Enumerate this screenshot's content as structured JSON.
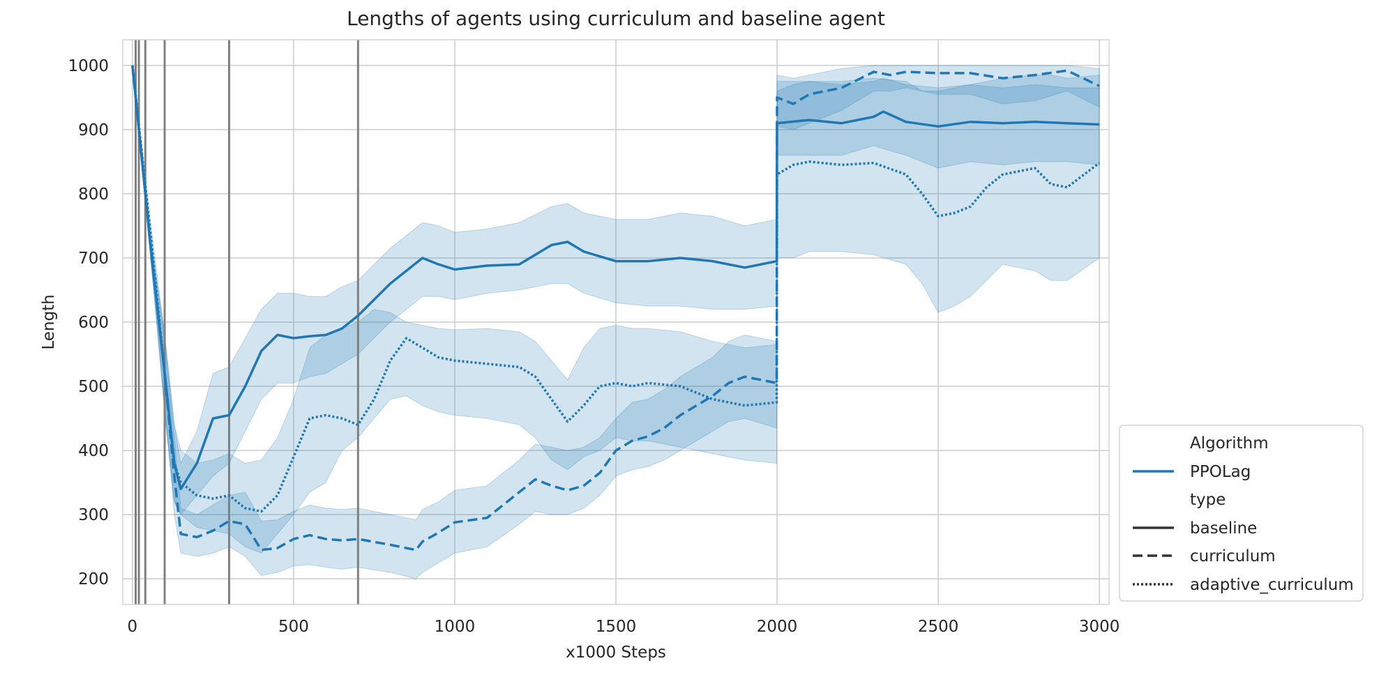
{
  "chart_data": {
    "type": "line",
    "title": "Lengths of agents using curriculum and baseline agent",
    "xlabel": "x1000 Steps",
    "ylabel": "Length",
    "xlim": [
      -30,
      3030
    ],
    "ylim": [
      160,
      1040
    ],
    "xticks": [
      0,
      500,
      1000,
      1500,
      2000,
      2500,
      3000
    ],
    "yticks": [
      200,
      300,
      400,
      500,
      600,
      700,
      800,
      900,
      1000
    ],
    "grid": true,
    "color": "#1f77b4",
    "band_opacity": 0.2,
    "vlines": {
      "x": [
        10,
        20,
        40,
        100,
        300,
        700
      ],
      "color": "#808080"
    },
    "legend": {
      "placement": "outside-lower-right",
      "items": [
        {
          "kind": "header",
          "label": "Algorithm"
        },
        {
          "kind": "line",
          "label": "PPOLag",
          "dash": "solid",
          "color": "#1f77b4"
        },
        {
          "kind": "header",
          "label": "type"
        },
        {
          "kind": "line",
          "label": "baseline",
          "dash": "solid",
          "color": "#333333"
        },
        {
          "kind": "line",
          "label": "curriculum",
          "dash": "dashed",
          "color": "#333333"
        },
        {
          "kind": "line",
          "label": "adaptive_curriculum",
          "dash": "dotted",
          "color": "#333333"
        }
      ]
    },
    "series": [
      {
        "name": "baseline",
        "dash": "solid",
        "x": [
          0,
          60,
          100,
          130,
          150,
          200,
          250,
          300,
          350,
          400,
          450,
          500,
          550,
          600,
          650,
          700,
          800,
          900,
          950,
          1000,
          1100,
          1200,
          1300,
          1350,
          1400,
          1500,
          1600,
          1700,
          1800,
          1900,
          1999,
          2000,
          2100,
          2200,
          2300,
          2330,
          2400,
          2500,
          2600,
          2700,
          2800,
          2900,
          3000
        ],
        "y": [
          1000,
          700,
          520,
          380,
          340,
          380,
          450,
          455,
          500,
          555,
          580,
          575,
          578,
          580,
          590,
          610,
          660,
          700,
          690,
          682,
          688,
          690,
          720,
          725,
          710,
          695,
          695,
          700,
          695,
          685,
          695,
          910,
          915,
          910,
          920,
          928,
          912,
          905,
          912,
          910,
          912,
          910,
          908
        ],
        "lower": [
          1000,
          680,
          460,
          320,
          300,
          330,
          360,
          380,
          430,
          480,
          505,
          505,
          515,
          520,
          535,
          550,
          600,
          640,
          640,
          635,
          645,
          650,
          660,
          660,
          645,
          630,
          625,
          625,
          620,
          620,
          625,
          860,
          860,
          860,
          875,
          870,
          860,
          840,
          850,
          845,
          850,
          850,
          845
        ],
        "upper": [
          1000,
          720,
          580,
          440,
          380,
          430,
          520,
          530,
          575,
          620,
          645,
          645,
          640,
          640,
          655,
          665,
          715,
          755,
          750,
          740,
          745,
          755,
          780,
          785,
          770,
          760,
          760,
          770,
          765,
          750,
          760,
          975,
          975,
          970,
          975,
          980,
          970,
          965,
          970,
          965,
          970,
          965,
          965
        ]
      },
      {
        "name": "curriculum",
        "dash": "dashed",
        "x": [
          0,
          60,
          100,
          130,
          150,
          200,
          250,
          300,
          350,
          400,
          450,
          500,
          550,
          600,
          650,
          700,
          800,
          880,
          900,
          950,
          1000,
          1100,
          1200,
          1250,
          1300,
          1350,
          1400,
          1450,
          1500,
          1550,
          1600,
          1650,
          1700,
          1800,
          1850,
          1900,
          1999,
          2000,
          2050,
          2100,
          2200,
          2300,
          2350,
          2400,
          2500,
          2600,
          2700,
          2800,
          2900,
          3000
        ],
        "y": [
          1000,
          700,
          520,
          360,
          270,
          265,
          275,
          290,
          285,
          245,
          248,
          262,
          268,
          262,
          260,
          262,
          253,
          245,
          258,
          272,
          288,
          295,
          335,
          355,
          345,
          338,
          345,
          365,
          400,
          415,
          422,
          435,
          455,
          485,
          505,
          515,
          505,
          950,
          940,
          955,
          965,
          990,
          985,
          990,
          988,
          988,
          980,
          985,
          992,
          968
        ],
        "lower": [
          1000,
          680,
          470,
          300,
          240,
          235,
          240,
          250,
          235,
          205,
          210,
          220,
          222,
          218,
          215,
          218,
          210,
          200,
          210,
          225,
          240,
          250,
          285,
          305,
          300,
          300,
          310,
          330,
          360,
          370,
          375,
          385,
          400,
          430,
          445,
          450,
          435,
          905,
          900,
          910,
          930,
          960,
          960,
          965,
          955,
          955,
          940,
          945,
          960,
          935
        ],
        "upper": [
          1000,
          720,
          570,
          420,
          310,
          300,
          315,
          330,
          335,
          290,
          292,
          305,
          315,
          310,
          308,
          310,
          300,
          292,
          308,
          320,
          338,
          345,
          385,
          410,
          405,
          400,
          405,
          420,
          450,
          475,
          480,
          495,
          515,
          545,
          570,
          580,
          570,
          985,
          980,
          985,
          995,
          1000,
          1000,
          1000,
          1000,
          1000,
          1000,
          1000,
          1000,
          995
        ]
      },
      {
        "name": "adaptive_curriculum",
        "dash": "dotted",
        "x": [
          0,
          60,
          100,
          130,
          150,
          200,
          250,
          300,
          350,
          400,
          450,
          500,
          550,
          600,
          650,
          700,
          750,
          800,
          850,
          900,
          950,
          1000,
          1100,
          1200,
          1250,
          1300,
          1350,
          1400,
          1450,
          1500,
          1550,
          1600,
          1700,
          1800,
          1900,
          1999,
          2000,
          2050,
          2100,
          2200,
          2300,
          2400,
          2450,
          2500,
          2550,
          2600,
          2650,
          2700,
          2800,
          2850,
          2900,
          3000
        ],
        "y": [
          1000,
          720,
          520,
          380,
          350,
          330,
          325,
          330,
          310,
          305,
          330,
          390,
          450,
          455,
          450,
          440,
          480,
          540,
          575,
          560,
          545,
          540,
          535,
          530,
          515,
          480,
          445,
          470,
          500,
          505,
          500,
          505,
          500,
          480,
          470,
          475,
          830,
          845,
          850,
          845,
          848,
          830,
          800,
          765,
          770,
          780,
          810,
          830,
          840,
          815,
          810,
          848
        ],
        "lower": [
          1000,
          700,
          460,
          320,
          300,
          280,
          275,
          270,
          250,
          240,
          270,
          300,
          335,
          350,
          400,
          420,
          450,
          480,
          485,
          470,
          460,
          455,
          450,
          440,
          420,
          385,
          370,
          390,
          400,
          420,
          415,
          415,
          405,
          395,
          385,
          380,
          700,
          700,
          710,
          710,
          705,
          690,
          660,
          615,
          625,
          640,
          665,
          690,
          680,
          665,
          665,
          700
        ],
        "upper": [
          1000,
          740,
          580,
          440,
          400,
          380,
          385,
          395,
          380,
          385,
          420,
          480,
          560,
          580,
          590,
          600,
          620,
          615,
          600,
          595,
          590,
          588,
          590,
          585,
          570,
          540,
          510,
          560,
          590,
          595,
          590,
          590,
          585,
          570,
          560,
          565,
          960,
          970,
          975,
          975,
          980,
          975,
          960,
          960,
          965,
          970,
          975,
          980,
          985,
          985,
          980,
          985
        ]
      }
    ]
  }
}
